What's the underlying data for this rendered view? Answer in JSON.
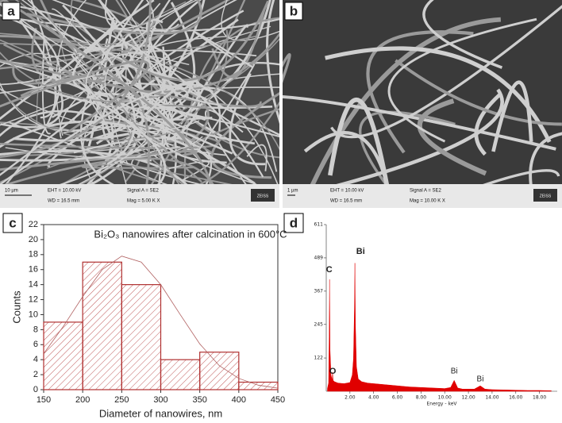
{
  "panels": {
    "a": {
      "letter": "a",
      "scale_bar": "10 µm",
      "eht": "EHT = 10.00 kV",
      "wd": "WD = 16.5 mm",
      "signal": "Signal A = SE2",
      "mag": "Mag =  5.00 K X",
      "logo": "ZEISS"
    },
    "b": {
      "letter": "b",
      "scale_bar": "1 µm",
      "eht": "EHT = 10.00 kV",
      "wd": "WD = 16.5 mm",
      "signal": "Signal A = SE2",
      "mag": "Mag = 10.00 K X",
      "logo": "ZEISS"
    },
    "c": {
      "letter": "c"
    },
    "d": {
      "letter": "d"
    }
  },
  "chart_data": [
    {
      "type": "histogram",
      "title": "Bi₂O₃ nanowires after calcination in 600°C",
      "x_label": "Diameter of nanowires, nm",
      "y_label": "Counts",
      "bins": [
        150,
        200,
        250,
        300,
        350,
        400,
        450
      ],
      "values": [
        9,
        17,
        14,
        4,
        5,
        1
      ],
      "color": "#b03030",
      "fit": {
        "x": [
          150,
          175,
          200,
          225,
          250,
          275,
          300,
          325,
          350,
          375,
          400,
          425,
          450
        ],
        "values": [
          4.8,
          8.4,
          12.4,
          16.0,
          17.8,
          17.0,
          14.0,
          10.0,
          6.1,
          3.2,
          1.5,
          0.6,
          0.2
        ],
        "color": "#b06060"
      },
      "xlim": [
        150,
        450
      ],
      "xticks": [
        150,
        200,
        250,
        300,
        350,
        400,
        450
      ],
      "ylim": [
        0,
        22
      ],
      "yticks": [
        0,
        2,
        4,
        6,
        8,
        10,
        12,
        14,
        16,
        18,
        20,
        22
      ]
    },
    {
      "type": "area",
      "x_label": "Energy - keV",
      "x": [
        0.1,
        0.2,
        0.25,
        0.28,
        0.32,
        0.4,
        0.5,
        0.53,
        0.58,
        0.7,
        1.0,
        1.5,
        2.0,
        2.2,
        2.3,
        2.38,
        2.42,
        2.46,
        2.55,
        2.7,
        3.0,
        3.5,
        4.0,
        5.0,
        6.0,
        7.0,
        8.0,
        9.0,
        10.0,
        10.5,
        10.8,
        11.1,
        11.5,
        12.5,
        13.0,
        13.4,
        14.0,
        15.0,
        16.0,
        17.0,
        18.0,
        19.0
      ],
      "values": [
        10,
        30,
        200,
        410,
        150,
        60,
        40,
        70,
        40,
        35,
        30,
        28,
        32,
        60,
        120,
        300,
        470,
        250,
        90,
        45,
        35,
        30,
        28,
        24,
        20,
        16,
        14,
        12,
        10,
        14,
        40,
        12,
        8,
        8,
        20,
        8,
        6,
        5,
        4,
        3,
        3,
        2
      ],
      "color": "#e00000",
      "annotations": [
        "C",
        "O",
        "Bi",
        "Bi",
        "Bi"
      ],
      "xlim": [
        0,
        19.5
      ],
      "xticks": [
        {
          "value": 2,
          "label": "2.00"
        },
        {
          "value": 4,
          "label": "4.00"
        },
        {
          "value": 6,
          "label": "6.00"
        },
        {
          "value": 8,
          "label": "8.00"
        },
        {
          "value": 10,
          "label": "10.00"
        },
        {
          "value": 12,
          "label": "12.00"
        },
        {
          "value": 14,
          "label": "14.00"
        },
        {
          "value": 16,
          "label": "16.00"
        },
        {
          "value": 18,
          "label": "18.00"
        }
      ],
      "ylim": [
        0,
        611
      ],
      "yticks": [
        122,
        245,
        367,
        489,
        611
      ]
    }
  ]
}
